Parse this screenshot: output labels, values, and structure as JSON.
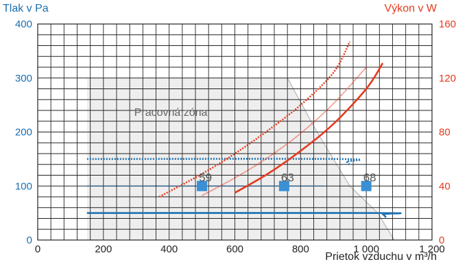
{
  "chart_data": {
    "type": "line",
    "title": "",
    "ylabel_left": "Tlak v Pa",
    "ylabel_right": "Výkon v W",
    "xlabel": "Prietok vzduchu v m³/h",
    "xlim": [
      0,
      1200
    ],
    "ylim_left": [
      0,
      400
    ],
    "ylim_right": [
      0,
      160
    ],
    "x_ticks": [
      "0",
      "200",
      "400",
      "600",
      "800",
      "1 000",
      "1 200"
    ],
    "y_ticks_left": [
      "0",
      "100",
      "200",
      "300",
      "400"
    ],
    "y_ticks_right": [
      "0",
      "40",
      "80",
      "120",
      "160"
    ],
    "grid": true,
    "working_zone": {
      "label": "Pracovná zóna",
      "polygon": [
        [
          150,
          0
        ],
        [
          150,
          300
        ],
        [
          760,
          300
        ],
        [
          850,
          200
        ],
        [
          950,
          100
        ],
        [
          1035,
          50
        ],
        [
          1085,
          0
        ]
      ]
    },
    "pressure_series": [
      {
        "style": "solid",
        "color": "#1a6fb0",
        "x": [
          150,
          1035,
          1050,
          1060
        ],
        "y": [
          50,
          50,
          48,
          42
        ]
      },
      {
        "style": "dense-dots",
        "color": "#1a6fb0",
        "x": [
          150,
          870
        ],
        "y": [
          100,
          100
        ]
      },
      {
        "style": "dots",
        "color": "#1a6fb0",
        "x": [
          150,
          920,
          940,
          950
        ],
        "y": [
          150,
          150,
          145,
          138
        ]
      }
    ],
    "power_series": [
      {
        "style": "solid",
        "color": "#e53a1d",
        "x": [
          600,
          700,
          800,
          900,
          1000,
          1050
        ],
        "y": [
          35,
          49,
          66,
          86,
          112,
          131
        ]
      },
      {
        "style": "dense-dots",
        "color": "#e53a1d",
        "x": [
          500,
          600,
          700,
          800,
          900,
          1000
        ],
        "y": [
          33,
          46,
          61,
          79,
          101,
          128
        ]
      },
      {
        "style": "dots",
        "color": "#e53a1d",
        "x": [
          370,
          500,
          600,
          700,
          800,
          900,
          950
        ],
        "y": [
          32,
          49,
          64,
          81,
          100,
          124,
          147
        ]
      }
    ],
    "markers": [
      {
        "x": 500,
        "y": 100,
        "label": "59"
      },
      {
        "x": 750,
        "y": 100,
        "label": "63"
      },
      {
        "x": 1000,
        "y": 100,
        "label": "68"
      }
    ],
    "colors": {
      "left_axis": "#1a6fb0",
      "right_axis": "#e53a1d",
      "marker": "#3b8fd4",
      "zone": "#eeeeee",
      "grid": "#222222"
    }
  }
}
